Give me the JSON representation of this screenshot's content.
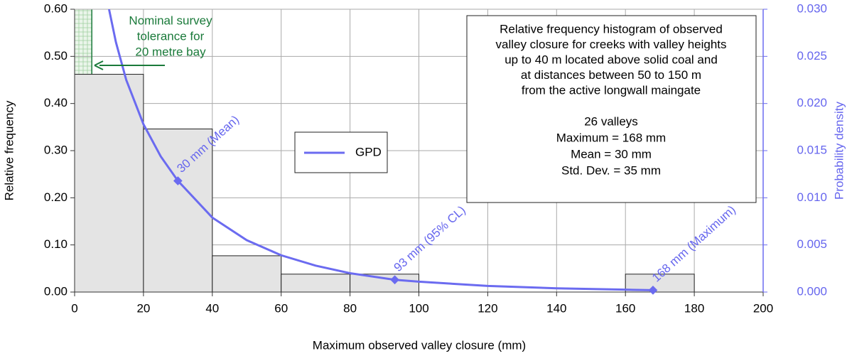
{
  "chart_data": {
    "type": "histogram",
    "bins": [
      0,
      20,
      40,
      60,
      80,
      100,
      120,
      140,
      160,
      180
    ],
    "values": [
      0.462,
      0.346,
      0.077,
      0.038,
      0.038,
      0,
      0,
      0,
      0.038
    ],
    "bar_color": "#e4e4e4",
    "xlabel": "Maximum observed valley closure (mm)",
    "ylabel": "Relative frequency",
    "y2label": "Probability density",
    "xlim": [
      0,
      200
    ],
    "xticks": [
      0,
      20,
      40,
      60,
      80,
      100,
      120,
      140,
      160,
      180,
      200
    ],
    "ylim": [
      0,
      0.6
    ],
    "yticks": [
      {
        "value": 0,
        "label": "0.00"
      },
      {
        "value": 0.1,
        "label": "0.10"
      },
      {
        "value": 0.2,
        "label": "0.20"
      },
      {
        "value": 0.3,
        "label": "0.30"
      },
      {
        "value": 0.4,
        "label": "0.40"
      },
      {
        "value": 0.5,
        "label": "0.50"
      },
      {
        "value": 0.6,
        "label": "0.60"
      }
    ],
    "y2lim": [
      0,
      0.03
    ],
    "y2ticks": [
      {
        "value": 0,
        "label": "0.000"
      },
      {
        "value": 0.005,
        "label": "0.005"
      },
      {
        "value": 0.01,
        "label": "0.010"
      },
      {
        "value": 0.015,
        "label": "0.015"
      },
      {
        "value": 0.02,
        "label": "0.020"
      },
      {
        "value": 0.025,
        "label": "0.025"
      },
      {
        "value": 0.03,
        "label": "0.030"
      }
    ],
    "grid": true,
    "series": [
      {
        "name": "GPD",
        "color": "#6b6bf0",
        "axis": "y2",
        "x": [
          10,
          12,
          15,
          20,
          25,
          30,
          40,
          50,
          60,
          70,
          80,
          93,
          100,
          120,
          140,
          160,
          168
        ],
        "values": [
          0.03,
          0.0265,
          0.0225,
          0.0178,
          0.0144,
          0.0118,
          0.0079,
          0.0055,
          0.0039,
          0.0028,
          0.002,
          0.0013,
          0.0011,
          0.00065,
          0.0004,
          0.00025,
          0.0002
        ]
      }
    ],
    "markers": [
      {
        "x": 30,
        "y": 0.0118,
        "label": "30 mm (Mean)"
      },
      {
        "x": 93,
        "y": 0.0013,
        "label": "93 mm (95% CL)"
      },
      {
        "x": 168,
        "y": 0.0002,
        "label": "168 mm (Maximum)"
      }
    ],
    "tolerance": {
      "x": 5,
      "lines": [
        "Nominal survey",
        "tolerance for",
        "20 metre bay"
      ],
      "color": "#1a7a3a"
    },
    "info_box": {
      "lines": [
        "Relative frequency histogram of observed",
        "valley closure for creeks with valley heights",
        "up to 40 m located above solid coal and",
        "at distances between 50 to 150 m",
        "from the active longwall maingate"
      ],
      "stats": [
        "26 valleys",
        "Maximum = 168 mm",
        "Mean = 30 mm",
        "Std. Dev. = 35 mm"
      ]
    }
  }
}
